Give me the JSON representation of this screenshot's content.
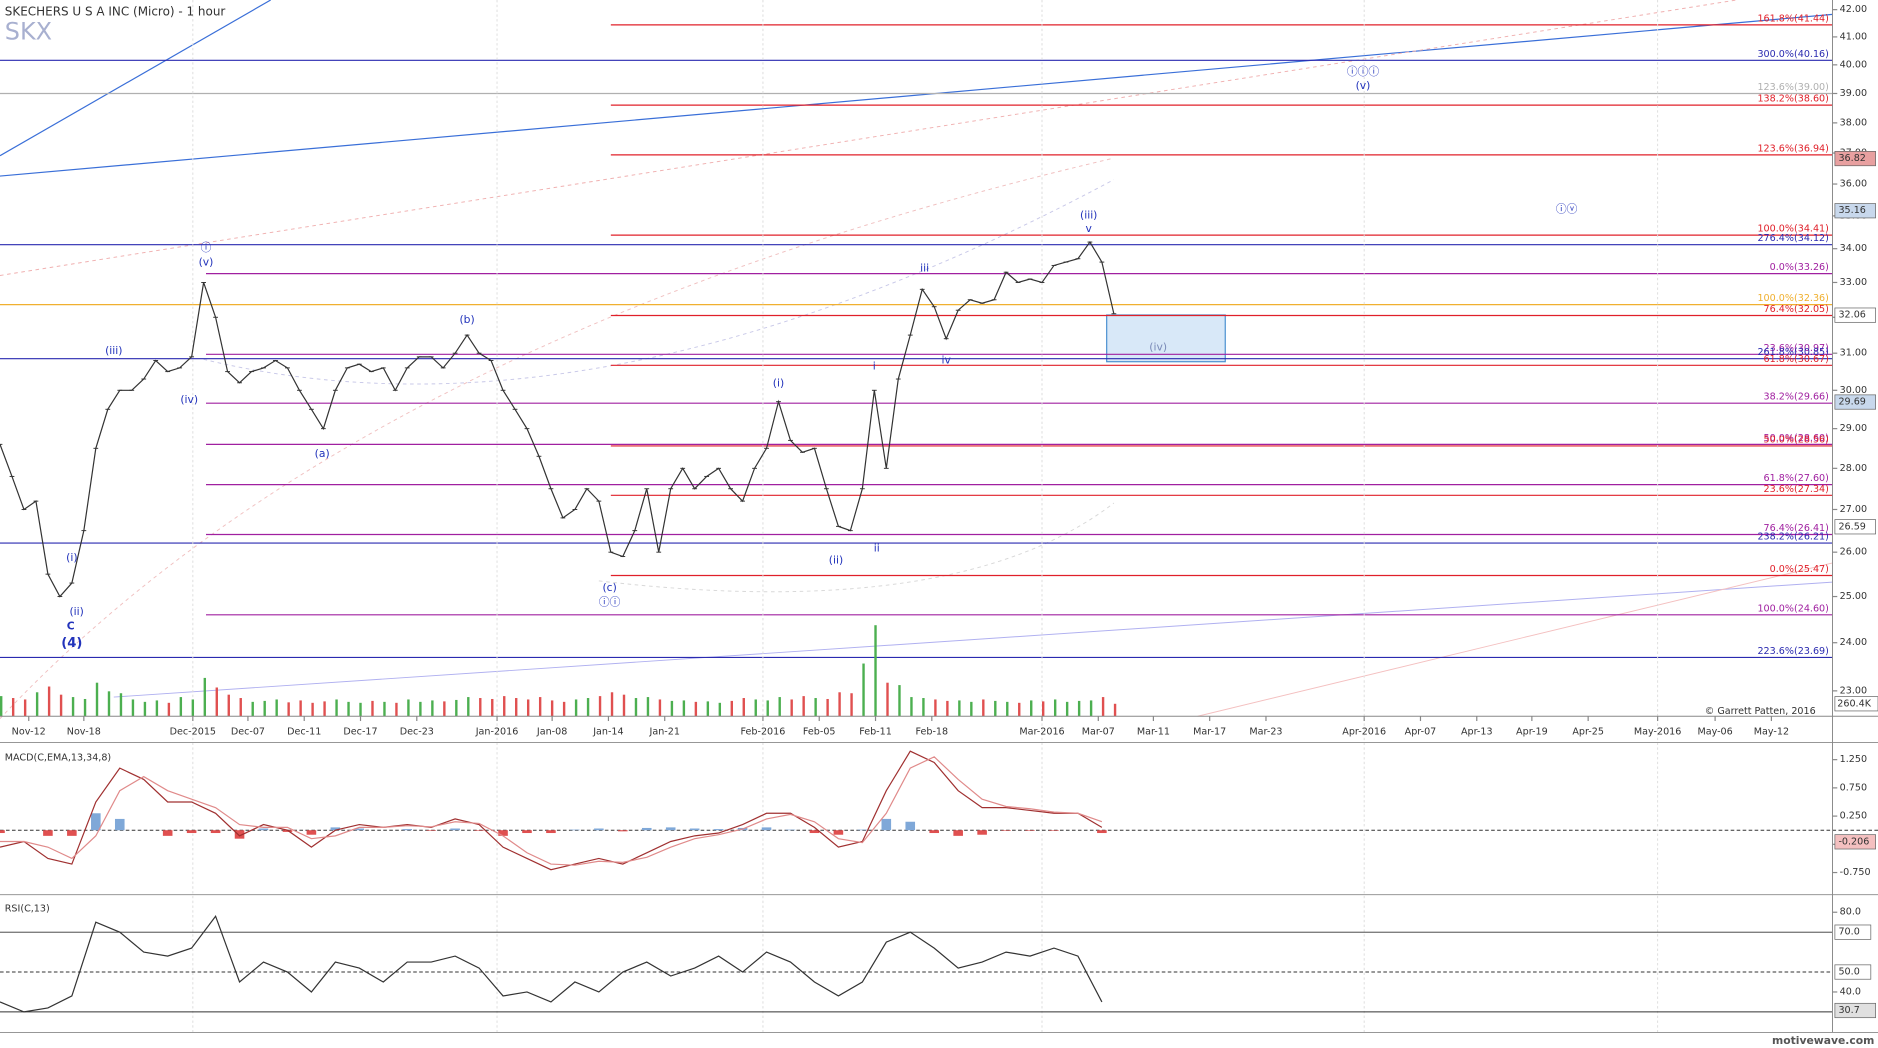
{
  "chart_data": [
    {
      "type": "price",
      "title": "SKECHERS U S A INC (Micro) - 1 hour",
      "symbol": "SKX",
      "copyright": "© Garrett Patten, 2016",
      "log": true,
      "ylim": [
        22.49,
        42.36
      ],
      "yticks": [
        {
          "value": 42,
          "label": "42.00"
        },
        {
          "value": 41,
          "label": "41.00"
        },
        {
          "value": 40,
          "label": "40.00"
        },
        {
          "value": 39,
          "label": "39.00"
        },
        {
          "value": 38,
          "label": "38.00"
        },
        {
          "value": 37,
          "label": "37.00"
        },
        {
          "value": 36,
          "label": "36.00"
        },
        {
          "value": 35,
          "label": "35.00"
        },
        {
          "value": 34,
          "label": "34.00"
        },
        {
          "value": 33,
          "label": "33.00"
        },
        {
          "value": 32,
          "label": "32.00"
        },
        {
          "value": 31,
          "label": "31.00"
        },
        {
          "value": 30,
          "label": "30.00"
        },
        {
          "value": 29,
          "label": "29.00"
        },
        {
          "value": 28,
          "label": "28.00"
        },
        {
          "value": 27,
          "label": "27.00"
        },
        {
          "value": 26,
          "label": "26.00"
        },
        {
          "value": 25,
          "label": "25.00"
        },
        {
          "value": 24,
          "label": "24.00"
        },
        {
          "value": 23,
          "label": "23.00"
        }
      ],
      "x_labels": [
        "Nov-12",
        "Nov-18",
        "Dec-2015",
        "Dec-07",
        "Dec-11",
        "Dec-17",
        "Dec-23",
        "Jan-2016",
        "Jan-08",
        "Jan-14",
        "Jan-21",
        "Feb-2016",
        "Feb-05",
        "Feb-11",
        "Feb-18",
        "Mar-2016",
        "Mar-07",
        "Mar-11",
        "Mar-17",
        "Mar-23",
        "Apr-2016",
        "Apr-07",
        "Apr-13",
        "Apr-19",
        "Apr-25",
        "May-2016",
        "May-06",
        "May-12"
      ],
      "series": [
        {
          "color": "#333333",
          "values": [
            28.6,
            27.8,
            27.0,
            27.2,
            25.5,
            25.0,
            25.3,
            26.5,
            28.5,
            29.5,
            30.0,
            30.0,
            30.3,
            30.8,
            30.5,
            30.6,
            30.9,
            33.0,
            32.0,
            30.5,
            30.2,
            30.5,
            30.6,
            30.8,
            30.6,
            30.0,
            29.5,
            29.0,
            30.0,
            30.6,
            30.7,
            30.5,
            30.6,
            30.0,
            30.6,
            30.9,
            30.9,
            30.6,
            31.0,
            31.5,
            31.0,
            30.8,
            30.0,
            29.5,
            29.0,
            28.3,
            27.5,
            26.8,
            27.0,
            27.5,
            27.2,
            26.0,
            25.9,
            26.5,
            27.5,
            26.0,
            27.5,
            28.0,
            27.5,
            27.8,
            28.0,
            27.5,
            27.2,
            28.0,
            28.5,
            29.7,
            28.7,
            28.4,
            28.5,
            27.5,
            26.6,
            26.5,
            27.5,
            30.0,
            28.0,
            30.3,
            31.5,
            32.8,
            32.3,
            31.4,
            32.2,
            32.5,
            32.4,
            32.5,
            33.3,
            33.0,
            33.1,
            33.0,
            33.5,
            33.6,
            33.7,
            34.2,
            33.6,
            32.1
          ]
        }
      ],
      "volume": {
        "up_color": "#4caf50",
        "down_color": "#e05050",
        "ylim": [
          0,
          1950
        ],
        "values": [
          420,
          380,
          350,
          500,
          620,
          450,
          400,
          360,
          700,
          520,
          480,
          350,
          300,
          330,
          280,
          400,
          350,
          800,
          600,
          450,
          380,
          300,
          320,
          350,
          290,
          330,
          280,
          310,
          350,
          300,
          280,
          320,
          300,
          280,
          350,
          300,
          330,
          310,
          340,
          400,
          380,
          360,
          420,
          380,
          350,
          400,
          330,
          300,
          350,
          380,
          420,
          500,
          450,
          380,
          400,
          350,
          320,
          330,
          300,
          310,
          280,
          320,
          380,
          350,
          330,
          400,
          350,
          420,
          380,
          360,
          500,
          480,
          1100,
          1900,
          700,
          650,
          400,
          380,
          350,
          320,
          330,
          300,
          350,
          320,
          300,
          280,
          330,
          310,
          350,
          300,
          320,
          330,
          400,
          260
        ],
        "marker": {
          "value": 260.4,
          "label": "260.4K"
        }
      },
      "levels": [
        {
          "label": "161.8%(41.44)",
          "value": 41.44,
          "color": "#e0202a"
        },
        {
          "label": "300.0%(40.16)",
          "value": 40.16,
          "color": "#2a2ab0"
        },
        {
          "label": "123.6%(39.00)",
          "value": 39.0,
          "color": "#b0b0b0"
        },
        {
          "label": "138.2%(38.60)",
          "value": 38.6,
          "color": "#e0202a"
        },
        {
          "label": "123.6%(36.94)",
          "value": 36.94,
          "color": "#e0202a"
        },
        {
          "label": "100.0%(34.41)",
          "value": 34.41,
          "color": "#e0202a"
        },
        {
          "label": "276.4%(34.12)",
          "value": 34.12,
          "color": "#2a2ab0"
        },
        {
          "label": "0.0%(33.26)",
          "value": 33.26,
          "color": "#a020a0"
        },
        {
          "label": "100.0%(32.36)",
          "value": 32.36,
          "color": "#f0b030"
        },
        {
          "label": "76.4%(32.05)",
          "value": 32.05,
          "color": "#e0202a"
        },
        {
          "label": "23.6%(30.97)",
          "value": 30.97,
          "color": "#a020a0"
        },
        {
          "label": "261.8%(30.85)",
          "value": 30.85,
          "color": "#2a2ab0"
        },
        {
          "label": "61.8%(30.67)",
          "value": 30.67,
          "color": "#e0202a"
        },
        {
          "label": "38.2%(29.66)",
          "value": 29.66,
          "color": "#a020a0"
        },
        {
          "label": "50.0%(28.60)",
          "value": 28.6,
          "color": "#a020a0"
        },
        {
          "label": "50.0%(28.56)",
          "value": 28.56,
          "color": "#e0202a"
        },
        {
          "label": "61.8%(27.60)",
          "value": 27.6,
          "color": "#a020a0"
        },
        {
          "label": "23.6%(27.34)",
          "value": 27.34,
          "color": "#e0202a"
        },
        {
          "label": "76.4%(26.41)",
          "value": 26.41,
          "color": "#a020a0"
        },
        {
          "label": "238.2%(26.21)",
          "value": 26.21,
          "color": "#2a2ab0"
        },
        {
          "label": "0.0%(25.47)",
          "value": 25.47,
          "color": "#e0202a"
        },
        {
          "label": "100.0%(24.60)",
          "value": 24.6,
          "color": "#a020a0"
        },
        {
          "label": "223.6%(23.69)",
          "value": 23.69,
          "color": "#2a2ab0"
        }
      ],
      "markers": [
        {
          "value": 36.82,
          "label": "36.82",
          "color": "#e8a0a0"
        },
        {
          "value": 35.16,
          "label": "35.16",
          "color": "#c8d8ec"
        },
        {
          "value": 32.06,
          "label": "32.06",
          "color": "#ffffff"
        },
        {
          "value": 29.69,
          "label": "29.69",
          "color": "#c8d8ec"
        },
        {
          "value": 26.59,
          "label": "26.59",
          "color": "#ffffff"
        }
      ],
      "annotation_color": "#2233bb",
      "annotations": [
        "(iii)",
        "ⓘ",
        "(v)",
        "(iv)",
        "(i)",
        "(ii)",
        "C",
        "(4)",
        "(a)",
        "(b)",
        "(c)",
        "ⓘⓘ",
        "(i)",
        "(ii)",
        "i",
        "ii",
        "iii",
        "iv",
        "(iii)",
        "v",
        "(iv)",
        "ⓘⓘⓘ",
        "(v)",
        "ⓘⓥ"
      ]
    },
    {
      "type": "macd",
      "title": "MACD(C,EMA,13,34,8)",
      "ylim": [
        -1.1,
        1.51
      ],
      "yticks": [
        {
          "value": 1.25,
          "label": "1.250"
        },
        {
          "value": 0.75,
          "label": "0.750"
        },
        {
          "value": 0.25,
          "label": "0.250"
        },
        {
          "value": -0.25,
          "label": "-0.250"
        },
        {
          "value": -0.75,
          "label": "-0.750"
        }
      ],
      "marker": {
        "value": -0.206,
        "label": "-0.206",
        "color": "#f4c0c0"
      },
      "series": [
        {
          "color": "#a03030",
          "values": [
            -0.3,
            -0.2,
            -0.5,
            -0.6,
            0.5,
            1.1,
            0.9,
            0.5,
            0.5,
            0.3,
            -0.1,
            0.1,
            0.0,
            -0.3,
            0.0,
            0.1,
            0.05,
            0.1,
            0.05,
            0.2,
            0.1,
            -0.3,
            -0.5,
            -0.7,
            -0.6,
            -0.5,
            -0.6,
            -0.4,
            -0.2,
            -0.1,
            -0.05,
            0.1,
            0.3,
            0.3,
            0.05,
            -0.3,
            -0.2,
            0.7,
            1.4,
            1.2,
            0.7,
            0.4,
            0.4,
            0.35,
            0.3,
            0.3,
            0.05
          ]
        },
        {
          "color": "#e08a8a",
          "values": [
            -0.2,
            -0.2,
            -0.3,
            -0.5,
            -0.1,
            0.7,
            0.95,
            0.7,
            0.55,
            0.4,
            0.1,
            0.05,
            0.05,
            -0.15,
            -0.1,
            0.05,
            0.05,
            0.08,
            0.06,
            0.15,
            0.12,
            -0.1,
            -0.4,
            -0.6,
            -0.62,
            -0.55,
            -0.57,
            -0.48,
            -0.3,
            -0.15,
            -0.08,
            0.02,
            0.2,
            0.28,
            0.15,
            -0.15,
            -0.22,
            0.3,
            1.1,
            1.3,
            0.9,
            0.55,
            0.42,
            0.38,
            0.32,
            0.3,
            0.15
          ]
        }
      ],
      "histogram": {
        "up_color": "#7fa8d8",
        "down_color": "#e05050",
        "values": [
          -0.05,
          0.0,
          -0.1,
          -0.1,
          0.3,
          0.2,
          0.0,
          -0.1,
          -0.05,
          -0.05,
          -0.15,
          0.03,
          -0.03,
          -0.08,
          0.05,
          0.03,
          0.0,
          0.02,
          -0.01,
          0.03,
          -0.01,
          -0.1,
          -0.05,
          -0.05,
          0.01,
          0.03,
          -0.02,
          0.04,
          0.05,
          0.03,
          0.02,
          0.04,
          0.05,
          0.01,
          -0.05,
          -0.08,
          0.01,
          0.2,
          0.15,
          -0.05,
          -0.1,
          -0.08,
          -0.01,
          -0.01,
          -0.01,
          0.0,
          -0.05
        ]
      }
    },
    {
      "type": "rsi",
      "title": "RSI(C,13)",
      "ylim": [
        20.9,
        87.6
      ],
      "yticks": [
        {
          "value": 80,
          "label": "80.0"
        },
        {
          "value": 40,
          "label": "40.0"
        }
      ],
      "levels": [
        {
          "value": 70,
          "label": "70.0"
        },
        {
          "value": 50,
          "label": "50.0"
        },
        {
          "value": 30
        }
      ],
      "marker": {
        "value": 30.7,
        "label": "30.7",
        "color": "#e0e0e0"
      },
      "series": [
        {
          "color": "#333333",
          "values": [
            35,
            30,
            32,
            38,
            75,
            70,
            60,
            58,
            62,
            78,
            45,
            55,
            50,
            40,
            55,
            52,
            45,
            55,
            55,
            58,
            52,
            38,
            40,
            35,
            45,
            40,
            50,
            55,
            48,
            52,
            58,
            50,
            60,
            55,
            45,
            38,
            45,
            65,
            70,
            62,
            52,
            55,
            60,
            58,
            62,
            58,
            35
          ]
        }
      ]
    }
  ],
  "footer": "motivewave.com"
}
